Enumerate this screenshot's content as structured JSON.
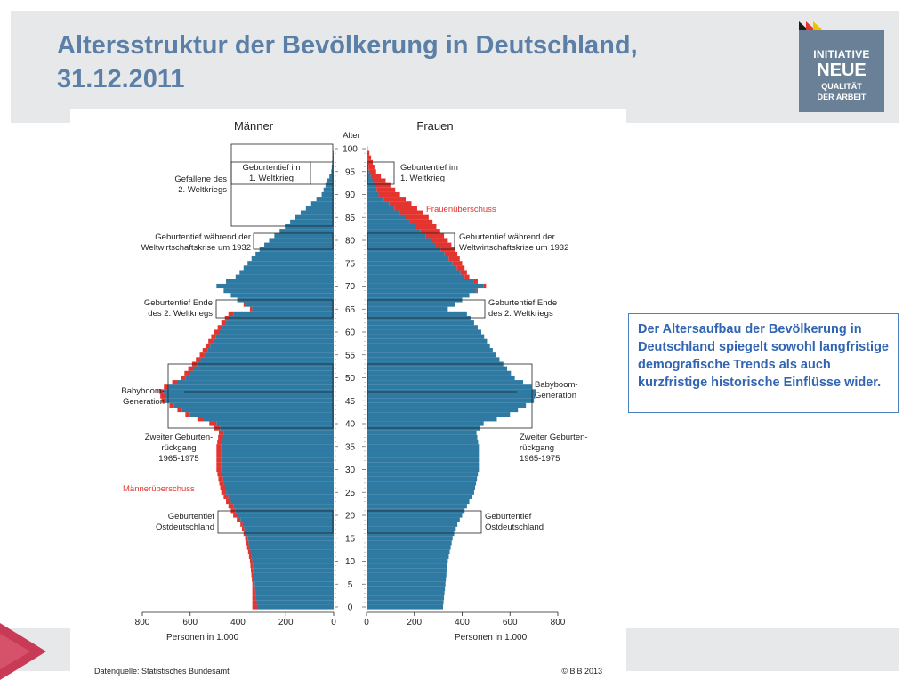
{
  "slide": {
    "title_line1": "Altersstruktur der Bevölkerung in Deutschland,",
    "title_line2": "31.12.2011",
    "logo": {
      "line1": "INITIATIVE",
      "line2": "NEUE",
      "line3": "QUALITÄT",
      "line4": "DER ARBEIT"
    },
    "info_text": "Der Altersaufbau der Bevölkerung in Deutschland spiegelt sowohl langfristige demografische Trends als auch kurzfristige historische Einflüsse wider.",
    "colors": {
      "title": "#5b7fa7",
      "header_band": "#e6e8e9",
      "bar_base": "#2e7aa3",
      "surplus": "#e3342f",
      "info_text": "#3165b3",
      "logo_bg": "#6a8096"
    }
  },
  "chart_data": {
    "type": "bar",
    "orientation": "horizontal",
    "subtype": "population-pyramid",
    "left_heading": "Männer",
    "right_heading": "Frauen",
    "age_axis_title": "Alter",
    "age_ticks": [
      "0",
      "5",
      "10",
      "15",
      "20",
      "25",
      "30",
      "35",
      "40",
      "45",
      "50",
      "55",
      "60",
      "65",
      "70",
      "75",
      "80",
      "85",
      "90",
      "95",
      "100"
    ],
    "x_ticks_left": [
      "800",
      "600",
      "400",
      "200",
      "0"
    ],
    "x_ticks_right": [
      "0",
      "200",
      "400",
      "600",
      "800"
    ],
    "x_unit_left": "Personen in 1.000",
    "x_unit_right": "Personen in 1.000",
    "xlim": [
      0,
      800
    ],
    "ylim": [
      0,
      100
    ],
    "source": "Datenquelle: Statistisches Bundesamt",
    "copyright": "© BiB 2013",
    "label_maenner_ueberschuss": "Männerüberschuss",
    "label_frauen_ueberschuss": "Frauenüberschuss",
    "annotations_left": [
      {
        "label": "Geburtentief im\n1. Weltkrieg",
        "side_label": "Gefallene des\n2. Weltkriegs"
      },
      {
        "label": "Geburtentief während der\nWeltwirtschaftskrise um 1932"
      },
      {
        "label": "Geburtentief Ende\ndes 2. Weltkriegs"
      },
      {
        "label": "Babyboom-\nGeneration"
      },
      {
        "label": "Zweiter Geburten-\nrückgang\n1965-1975"
      },
      {
        "label": "Geburtentief\nOstdeutschland"
      }
    ],
    "annotations_right": [
      {
        "label": "Geburtentief im\n1. Weltkrieg"
      },
      {
        "label": "Geburtentief während der\nWeltwirtschaftskrise um 1932"
      },
      {
        "label": "Geburtentief Ende\ndes 2. Weltkriegs"
      },
      {
        "label": "Babyboom-\nGeneration"
      },
      {
        "label": "Zweiter Geburten-\nrückgang\n1965-1975"
      },
      {
        "label": "Geburtentief\nOstdeutschland"
      }
    ],
    "ages": [
      0,
      5,
      10,
      15,
      18,
      20,
      25,
      30,
      35,
      38,
      40,
      42,
      45,
      47,
      48,
      50,
      55,
      60,
      64,
      65,
      68,
      70,
      72,
      75,
      78,
      80,
      85,
      90,
      95,
      100
    ],
    "men": [
      340,
      340,
      350,
      370,
      390,
      420,
      470,
      490,
      490,
      480,
      520,
      620,
      720,
      730,
      710,
      640,
      560,
      500,
      440,
      350,
      430,
      490,
      410,
      360,
      310,
      270,
      160,
      50,
      10,
      0
    ],
    "women": [
      320,
      330,
      340,
      360,
      380,
      400,
      450,
      470,
      470,
      460,
      490,
      600,
      700,
      710,
      690,
      620,
      540,
      480,
      420,
      340,
      430,
      500,
      430,
      400,
      370,
      340,
      260,
      140,
      40,
      5
    ]
  }
}
